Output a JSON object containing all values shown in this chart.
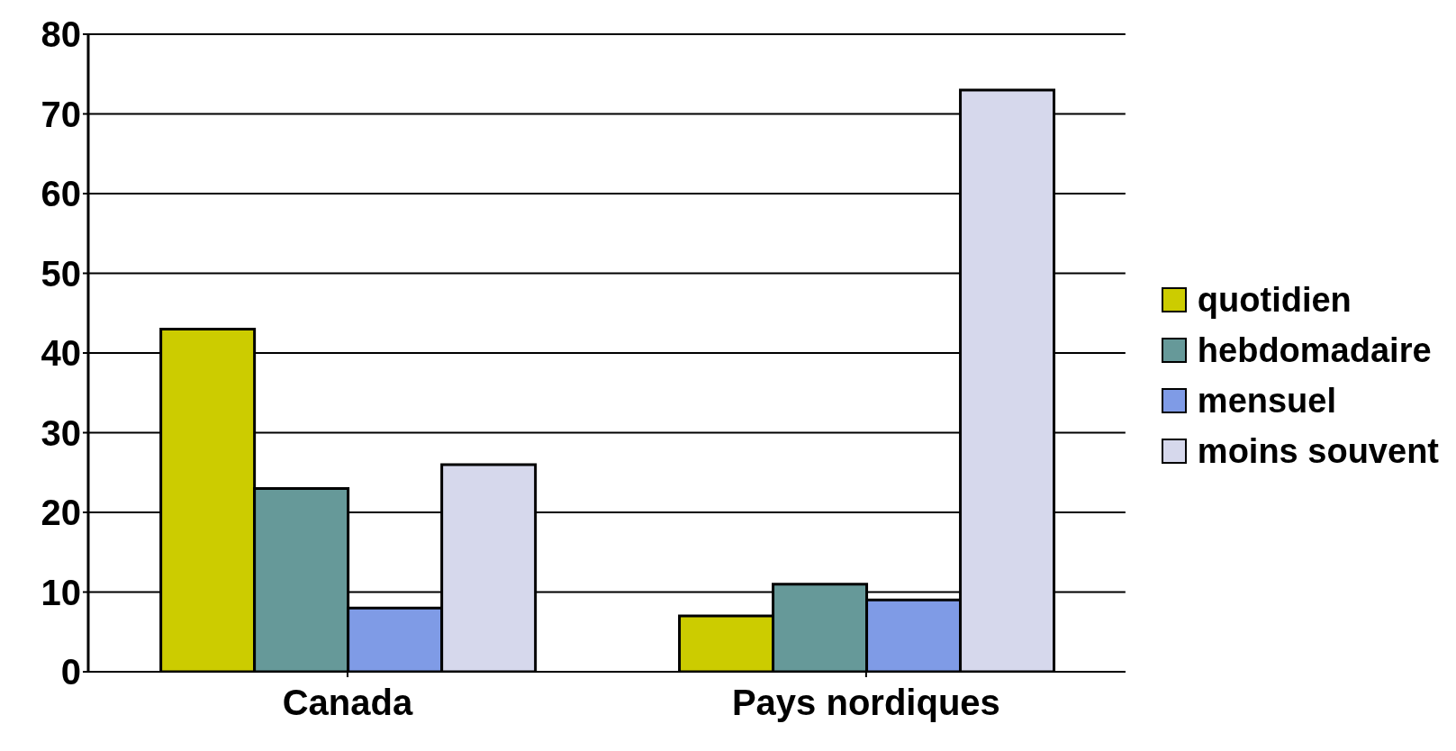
{
  "chart_data": {
    "type": "bar",
    "categories": [
      "Canada",
      "Pays nordiques"
    ],
    "series": [
      {
        "name": "quotidien",
        "color": "#cccc00",
        "values": [
          43,
          7
        ]
      },
      {
        "name": "hebdomadaire",
        "color": "#669999",
        "values": [
          23,
          11
        ]
      },
      {
        "name": "mensuel",
        "color": "#7f9be6",
        "values": [
          8,
          9
        ]
      },
      {
        "name": "moins souvent",
        "color": "#d6d8ec",
        "values": [
          26,
          73
        ]
      }
    ],
    "ylim": [
      0,
      80
    ],
    "yticks": [
      0,
      10,
      20,
      30,
      40,
      50,
      60,
      70,
      80
    ],
    "grid": "y",
    "legend": "right"
  }
}
